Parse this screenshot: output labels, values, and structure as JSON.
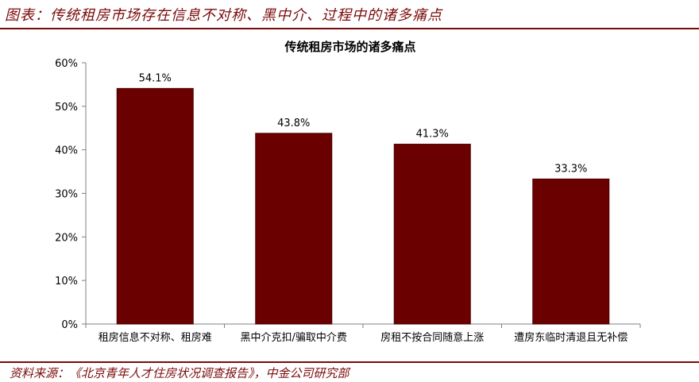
{
  "figure": {
    "title": "图表：传统租房市场存在信息不对称、黑中介、过程中的诸多痛点",
    "source": "资料来源：《北京青年人才住房状况调查报告》，中金公司研究部"
  },
  "chart_data": {
    "type": "bar",
    "title": "传统租房市场的诸多痛点",
    "categories": [
      "租房信息不对称、租房难",
      "黑中介克扣/骗取中介费",
      "房租不按合同随意上涨",
      "遭房东临时清退且无补偿"
    ],
    "values": [
      54.1,
      43.8,
      41.3,
      33.3
    ],
    "value_labels": [
      "54.1%",
      "43.8%",
      "41.3%",
      "33.3%"
    ],
    "ylim": [
      0,
      60
    ],
    "yticks": [
      0,
      10,
      20,
      30,
      40,
      50,
      60
    ],
    "ytick_labels": [
      "0%",
      "10%",
      "20%",
      "30%",
      "40%",
      "50%",
      "60%"
    ],
    "xlabel": "",
    "ylabel": "",
    "grid": false,
    "colors": {
      "bar": "#6b0000",
      "bar_edge": "#4a0000",
      "frame": "#7a0a0a"
    }
  }
}
